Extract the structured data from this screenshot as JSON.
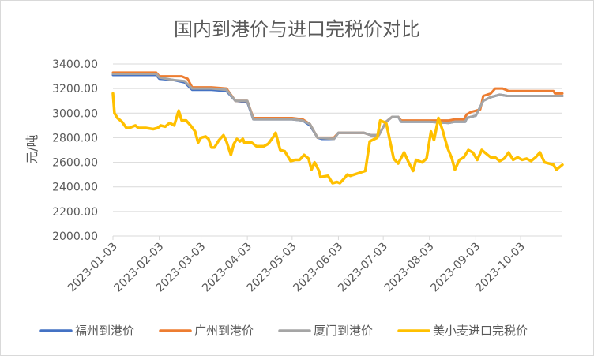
{
  "chart_data": {
    "type": "line",
    "title": "国内到港价与进口完税价对比",
    "ylabel": "元/吨",
    "xlabel": "",
    "ylim": [
      2000,
      3400
    ],
    "y_ticks": [
      "2000.00",
      "2200.00",
      "2400.00",
      "2600.00",
      "2800.00",
      "3000.00",
      "3200.00",
      "3400.00"
    ],
    "x_range": [
      "2023-01-03",
      "2023-10-31"
    ],
    "x_ticks": [
      "2023-01-03",
      "2023-02-03",
      "2023-03-03",
      "2023-04-03",
      "2023-05-03",
      "2023-06-03",
      "2023-07-03",
      "2023-08-03",
      "2023-09-03",
      "2023-10-03"
    ],
    "grid": true,
    "legend_position": "bottom",
    "series": [
      {
        "name": "福州到港价",
        "color": "#4472C4",
        "points": [
          [
            "2023-01-03",
            3310
          ],
          [
            "2023-02-01",
            3310
          ],
          [
            "2023-02-03",
            3280
          ],
          [
            "2023-02-12",
            3270
          ],
          [
            "2023-02-20",
            3250
          ],
          [
            "2023-02-25",
            3190
          ],
          [
            "2023-03-10",
            3190
          ],
          [
            "2023-03-20",
            3180
          ],
          [
            "2023-03-26",
            3100
          ],
          [
            "2023-04-03",
            3090
          ],
          [
            "2023-04-07",
            2950
          ],
          [
            "2023-04-20",
            2950
          ],
          [
            "2023-05-03",
            2950
          ],
          [
            "2023-05-10",
            2940
          ],
          [
            "2023-05-15",
            2900
          ],
          [
            "2023-05-20",
            2800
          ],
          [
            "2023-05-23",
            2790
          ],
          [
            "2023-05-31",
            2790
          ],
          [
            "2023-06-03",
            2840
          ],
          [
            "2023-06-20",
            2840
          ],
          [
            "2023-06-25",
            2820
          ],
          [
            "2023-06-30",
            2820
          ],
          [
            "2023-07-05",
            2930
          ],
          [
            "2023-07-09",
            2970
          ],
          [
            "2023-07-13",
            2970
          ],
          [
            "2023-07-15",
            2930
          ],
          [
            "2023-08-03",
            2930
          ],
          [
            "2023-08-16",
            2920
          ],
          [
            "2023-08-20",
            2930
          ],
          [
            "2023-08-27",
            2930
          ],
          [
            "2023-08-28",
            2960
          ],
          [
            "2023-09-03",
            2980
          ],
          [
            "2023-09-08",
            3100
          ],
          [
            "2023-09-13",
            3130
          ],
          [
            "2023-09-19",
            3150
          ],
          [
            "2023-09-24",
            3140
          ],
          [
            "2023-10-03",
            3140
          ],
          [
            "2023-10-25",
            3140
          ],
          [
            "2023-10-31",
            3140
          ]
        ]
      },
      {
        "name": "广州到港价",
        "color": "#ED7D31",
        "points": [
          [
            "2023-01-03",
            3330
          ],
          [
            "2023-02-01",
            3330
          ],
          [
            "2023-02-03",
            3300
          ],
          [
            "2023-02-18",
            3300
          ],
          [
            "2023-02-22",
            3280
          ],
          [
            "2023-02-25",
            3210
          ],
          [
            "2023-03-10",
            3210
          ],
          [
            "2023-03-20",
            3200
          ],
          [
            "2023-03-26",
            3100
          ],
          [
            "2023-04-03",
            3100
          ],
          [
            "2023-04-07",
            2960
          ],
          [
            "2023-05-03",
            2960
          ],
          [
            "2023-05-10",
            2950
          ],
          [
            "2023-05-15",
            2910
          ],
          [
            "2023-05-20",
            2800
          ],
          [
            "2023-05-31",
            2800
          ],
          [
            "2023-06-03",
            2840
          ],
          [
            "2023-06-20",
            2840
          ],
          [
            "2023-06-25",
            2820
          ],
          [
            "2023-06-30",
            2820
          ],
          [
            "2023-07-05",
            2930
          ],
          [
            "2023-07-09",
            2970
          ],
          [
            "2023-07-13",
            2970
          ],
          [
            "2023-07-15",
            2940
          ],
          [
            "2023-08-03",
            2940
          ],
          [
            "2023-08-16",
            2940
          ],
          [
            "2023-08-20",
            2950
          ],
          [
            "2023-08-26",
            2950
          ],
          [
            "2023-08-28",
            2990
          ],
          [
            "2023-08-31",
            3010
          ],
          [
            "2023-09-03",
            3020
          ],
          [
            "2023-09-06",
            3030
          ],
          [
            "2023-09-08",
            3140
          ],
          [
            "2023-09-13",
            3160
          ],
          [
            "2023-09-16",
            3200
          ],
          [
            "2023-09-21",
            3200
          ],
          [
            "2023-09-25",
            3180
          ],
          [
            "2023-10-10",
            3180
          ],
          [
            "2023-10-25",
            3180
          ],
          [
            "2023-10-26",
            3160
          ],
          [
            "2023-10-31",
            3160
          ]
        ]
      },
      {
        "name": "厦门到港价",
        "color": "#A5A5A5",
        "points": [
          [
            "2023-01-03",
            3320
          ],
          [
            "2023-02-01",
            3320
          ],
          [
            "2023-02-03",
            3290
          ],
          [
            "2023-02-12",
            3270
          ],
          [
            "2023-02-20",
            3260
          ],
          [
            "2023-02-25",
            3200
          ],
          [
            "2023-03-10",
            3200
          ],
          [
            "2023-03-20",
            3190
          ],
          [
            "2023-03-26",
            3100
          ],
          [
            "2023-04-03",
            3100
          ],
          [
            "2023-04-07",
            2950
          ],
          [
            "2023-05-03",
            2950
          ],
          [
            "2023-05-10",
            2940
          ],
          [
            "2023-05-15",
            2910
          ],
          [
            "2023-05-20",
            2800
          ],
          [
            "2023-05-31",
            2790
          ],
          [
            "2023-06-03",
            2840
          ],
          [
            "2023-06-20",
            2840
          ],
          [
            "2023-06-25",
            2820
          ],
          [
            "2023-06-30",
            2820
          ],
          [
            "2023-07-05",
            2930
          ],
          [
            "2023-07-09",
            2970
          ],
          [
            "2023-07-13",
            2970
          ],
          [
            "2023-07-15",
            2930
          ],
          [
            "2023-08-03",
            2930
          ],
          [
            "2023-08-16",
            2920
          ],
          [
            "2023-08-20",
            2930
          ],
          [
            "2023-08-27",
            2930
          ],
          [
            "2023-08-28",
            2960
          ],
          [
            "2023-09-03",
            2980
          ],
          [
            "2023-09-08",
            3100
          ],
          [
            "2023-09-13",
            3130
          ],
          [
            "2023-09-19",
            3150
          ],
          [
            "2023-09-24",
            3140
          ],
          [
            "2023-10-03",
            3140
          ],
          [
            "2023-10-25",
            3140
          ],
          [
            "2023-10-31",
            3140
          ]
        ]
      },
      {
        "name": "美小麦进口完税价",
        "color": "#FFC000",
        "points": [
          [
            "2023-01-03",
            3160
          ],
          [
            "2023-01-04",
            3000
          ],
          [
            "2023-01-06",
            2960
          ],
          [
            "2023-01-09",
            2930
          ],
          [
            "2023-01-12",
            2880
          ],
          [
            "2023-01-14",
            2880
          ],
          [
            "2023-01-18",
            2900
          ],
          [
            "2023-01-20",
            2880
          ],
          [
            "2023-01-25",
            2880
          ],
          [
            "2023-01-30",
            2870
          ],
          [
            "2023-02-02",
            2880
          ],
          [
            "2023-02-04",
            2900
          ],
          [
            "2023-02-07",
            2890
          ],
          [
            "2023-02-10",
            2920
          ],
          [
            "2023-02-13",
            2900
          ],
          [
            "2023-02-16",
            3020
          ],
          [
            "2023-02-18",
            2940
          ],
          [
            "2023-02-21",
            2940
          ],
          [
            "2023-02-24",
            2900
          ],
          [
            "2023-02-27",
            2850
          ],
          [
            "2023-03-01",
            2760
          ],
          [
            "2023-03-03",
            2800
          ],
          [
            "2023-03-06",
            2810
          ],
          [
            "2023-03-08",
            2790
          ],
          [
            "2023-03-10",
            2720
          ],
          [
            "2023-03-12",
            2720
          ],
          [
            "2023-03-15",
            2780
          ],
          [
            "2023-03-18",
            2820
          ],
          [
            "2023-03-20",
            2770
          ],
          [
            "2023-03-23",
            2660
          ],
          [
            "2023-03-25",
            2750
          ],
          [
            "2023-03-27",
            2790
          ],
          [
            "2023-03-29",
            2770
          ],
          [
            "2023-03-31",
            2790
          ],
          [
            "2023-04-01",
            2760
          ],
          [
            "2023-04-06",
            2760
          ],
          [
            "2023-04-09",
            2730
          ],
          [
            "2023-04-14",
            2730
          ],
          [
            "2023-04-17",
            2750
          ],
          [
            "2023-04-20",
            2800
          ],
          [
            "2023-04-22",
            2840
          ],
          [
            "2023-04-25",
            2700
          ],
          [
            "2023-04-28",
            2690
          ],
          [
            "2023-05-02",
            2610
          ],
          [
            "2023-05-05",
            2620
          ],
          [
            "2023-05-08",
            2620
          ],
          [
            "2023-05-11",
            2660
          ],
          [
            "2023-05-14",
            2630
          ],
          [
            "2023-05-16",
            2540
          ],
          [
            "2023-05-18",
            2600
          ],
          [
            "2023-05-21",
            2530
          ],
          [
            "2023-05-22",
            2480
          ],
          [
            "2023-05-27",
            2490
          ],
          [
            "2023-05-30",
            2430
          ],
          [
            "2023-06-02",
            2440
          ],
          [
            "2023-06-04",
            2430
          ],
          [
            "2023-06-07",
            2470
          ],
          [
            "2023-06-09",
            2500
          ],
          [
            "2023-06-11",
            2490
          ],
          [
            "2023-06-16",
            2510
          ],
          [
            "2023-06-21",
            2530
          ],
          [
            "2023-06-24",
            2770
          ],
          [
            "2023-06-29",
            2800
          ],
          [
            "2023-07-01",
            2940
          ],
          [
            "2023-07-05",
            2920
          ],
          [
            "2023-07-10",
            2630
          ],
          [
            "2023-07-13",
            2590
          ],
          [
            "2023-07-17",
            2680
          ],
          [
            "2023-07-20",
            2600
          ],
          [
            "2023-07-23",
            2530
          ],
          [
            "2023-07-25",
            2620
          ],
          [
            "2023-07-29",
            2600
          ],
          [
            "2023-08-01",
            2630
          ],
          [
            "2023-08-04",
            2850
          ],
          [
            "2023-08-06",
            2780
          ],
          [
            "2023-08-09",
            2960
          ],
          [
            "2023-08-12",
            2850
          ],
          [
            "2023-08-15",
            2720
          ],
          [
            "2023-08-18",
            2630
          ],
          [
            "2023-08-20",
            2540
          ],
          [
            "2023-08-23",
            2620
          ],
          [
            "2023-08-26",
            2640
          ],
          [
            "2023-08-29",
            2700
          ],
          [
            "2023-09-01",
            2680
          ],
          [
            "2023-09-04",
            2620
          ],
          [
            "2023-09-07",
            2700
          ],
          [
            "2023-09-10",
            2670
          ],
          [
            "2023-09-13",
            2640
          ],
          [
            "2023-09-16",
            2640
          ],
          [
            "2023-09-19",
            2610
          ],
          [
            "2023-09-22",
            2630
          ],
          [
            "2023-09-25",
            2680
          ],
          [
            "2023-09-28",
            2620
          ],
          [
            "2023-10-01",
            2640
          ],
          [
            "2023-10-04",
            2620
          ],
          [
            "2023-10-07",
            2630
          ],
          [
            "2023-10-10",
            2610
          ],
          [
            "2023-10-13",
            2640
          ],
          [
            "2023-10-16",
            2680
          ],
          [
            "2023-10-19",
            2600
          ],
          [
            "2023-10-22",
            2590
          ],
          [
            "2023-10-25",
            2580
          ],
          [
            "2023-10-27",
            2540
          ],
          [
            "2023-10-29",
            2560
          ],
          [
            "2023-10-31",
            2580
          ]
        ]
      }
    ]
  }
}
